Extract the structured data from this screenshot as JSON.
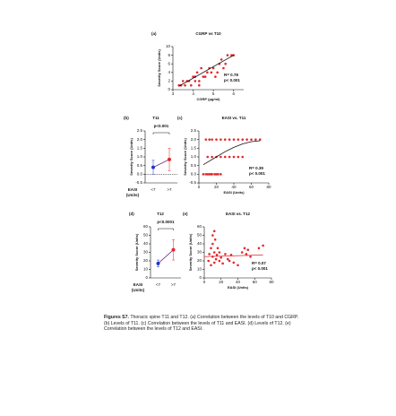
{
  "chart_data": [
    {
      "type": "scatter",
      "panel": "(a)",
      "title": "CGRP vs T10",
      "xlabel": "CGRP (pg/ml)",
      "ylabel": "Severity Score (Units)",
      "xlim": [
        3,
        6.5
      ],
      "xticks": [
        3,
        4,
        5,
        6
      ],
      "ylim": [
        0,
        10
      ],
      "yticks": [
        0,
        2,
        4,
        6,
        8,
        10
      ],
      "annotations": [
        "R= 0.78",
        "p< 0.001"
      ],
      "series": [
        {
          "type": "scatter",
          "color": "#e4262b",
          "x": [
            3.3,
            3.4,
            3.5,
            3.6,
            3.7,
            3.8,
            3.9,
            4.0,
            4.1,
            4.1,
            4.2,
            4.3,
            4.4,
            4.5,
            4.6,
            4.7,
            4.8,
            4.9,
            5.0,
            5.1,
            5.2,
            5.3,
            5.4,
            5.5,
            5.6,
            5.7,
            5.9,
            6.0,
            4.3
          ],
          "values": [
            1,
            1,
            2,
            1,
            2,
            2,
            1,
            3,
            2,
            3,
            4,
            2,
            5,
            3,
            3,
            4,
            5,
            4,
            5,
            3,
            4,
            6,
            7,
            5,
            6,
            8,
            8,
            8,
            1
          ]
        },
        {
          "type": "line",
          "color": "#111111",
          "x": [
            3.3,
            6.0
          ],
          "values": [
            0.8,
            8.0
          ]
        }
      ]
    },
    {
      "type": "point",
      "panel": "(b)",
      "title": "T11",
      "annotation": "p<0.001",
      "ylabel": "Severity Score (Units)",
      "xlabel": [
        "EASI",
        "(Units)"
      ],
      "categories": [
        "<7",
        ">7"
      ],
      "values": [
        0.4,
        0.85
      ],
      "errors": [
        0.4,
        0.65
      ],
      "colors": [
        "#1f35c9",
        "#e4262b"
      ],
      "reference_line": 0,
      "ylim": [
        -0.5,
        2.5
      ],
      "yticks": [
        -0.5,
        {
          "value": 0,
          "label": "0.0"
        },
        0.5,
        {
          "value": 1,
          "label": "1.0"
        },
        1.5,
        {
          "value": 2,
          "label": "2.0"
        },
        2.5
      ]
    },
    {
      "type": "scatter",
      "panel": "(c)",
      "title": "EASI vs. T11",
      "xlabel": "EASI (Units)",
      "ylabel": "Severity Score (Units)",
      "xlim": [
        0,
        80
      ],
      "xticks": [
        0,
        20,
        40,
        60,
        80
      ],
      "ylim": [
        -0.5,
        2.5
      ],
      "yticks": [
        -0.5,
        {
          "value": 0,
          "label": "0.0"
        },
        0.5,
        {
          "value": 1,
          "label": "1.0"
        },
        1.5,
        {
          "value": 2,
          "label": "2.0"
        },
        2.5
      ],
      "annotations": [
        "R= 0.39",
        "p< 0.001"
      ],
      "series": [
        {
          "type": "scatter",
          "color": "#e4262b",
          "x": [
            5,
            8,
            10,
            12,
            14,
            15,
            18,
            20,
            22,
            25,
            10,
            15,
            20,
            25,
            30,
            35,
            40,
            45,
            50,
            8,
            12,
            15,
            20,
            25,
            30,
            35,
            40,
            45,
            50,
            55,
            60,
            65,
            70
          ],
          "values": [
            0,
            0,
            0,
            0,
            0,
            0,
            0,
            0,
            0,
            0,
            1,
            1,
            1,
            1,
            1,
            1,
            1,
            1,
            1,
            2,
            2,
            2,
            2,
            2,
            2,
            2,
            2,
            2,
            2,
            2,
            2,
            2,
            2
          ]
        },
        {
          "type": "line",
          "color": "#111111",
          "x": [
            5,
            10,
            20,
            30,
            40,
            50,
            60,
            70
          ],
          "values": [
            0.55,
            0.7,
            1.0,
            1.3,
            1.55,
            1.75,
            1.88,
            1.93
          ]
        }
      ]
    },
    {
      "type": "point",
      "panel": "(d)",
      "title": "T12",
      "annotation": "p<0.0001",
      "ylabel": "Severity Score (Units)",
      "xlabel": [
        "EASI",
        "(Units)"
      ],
      "categories": [
        "<7",
        ">7"
      ],
      "values": [
        17,
        33
      ],
      "errors": [
        4,
        12
      ],
      "colors": [
        "#1f35c9",
        "#e4262b"
      ],
      "ylim": [
        0,
        60
      ],
      "yticks": [
        0,
        10,
        20,
        30,
        40,
        50,
        60
      ]
    },
    {
      "type": "scatter",
      "panel": "(e)",
      "title": "EASI vs. T12",
      "xlabel": "EASI (Units)",
      "ylabel": "Severity Score (Units)",
      "xlim": [
        0,
        80
      ],
      "xticks": [
        0,
        20,
        40,
        60,
        80
      ],
      "ylim": [
        0,
        60
      ],
      "yticks": [
        0,
        10,
        20,
        30,
        40,
        50,
        60
      ],
      "annotations": [
        "R= 0.07",
        "p< 0.001"
      ],
      "series": [
        {
          "type": "scatter",
          "color": "#e4262b",
          "x": [
            5,
            6,
            8,
            8,
            10,
            10,
            12,
            12,
            13,
            14,
            15,
            16,
            18,
            18,
            20,
            22,
            25,
            28,
            30,
            32,
            35,
            40,
            45,
            48,
            50,
            52,
            55,
            65,
            70,
            10,
            12
          ],
          "values": [
            20,
            28,
            15,
            35,
            25,
            40,
            18,
            30,
            45,
            22,
            27,
            35,
            20,
            30,
            24,
            17,
            28,
            22,
            20,
            27,
            18,
            15,
            30,
            35,
            28,
            33,
            25,
            35,
            38,
            50,
            55
          ]
        },
        {
          "type": "line",
          "color": "#e4262b",
          "x": [
            0,
            70
          ],
          "values": [
            25,
            27
          ]
        }
      ]
    }
  ],
  "caption": {
    "label": "Figures S7.",
    "text": "Thoracic spine T11 and T12. (a) Correlation between the levels of T10 and CGRP. (b) Levels of T11. (c) Correlation between the levels of T11 and EASI. (d) Levels of T12. (e) Correlation between the levels of T12 and EASI."
  }
}
